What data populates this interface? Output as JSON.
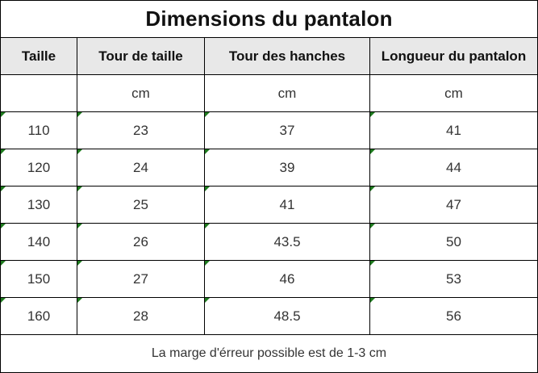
{
  "title": "Dimensions du pantalon",
  "headers": [
    "Taille",
    "Tour de taille",
    "Tour des hanches",
    "Longueur du pantalon"
  ],
  "units": [
    "",
    "cm",
    "cm",
    "cm"
  ],
  "rows": [
    {
      "taille": "110",
      "taille_waist": "23",
      "hanches": "37",
      "longueur": "41"
    },
    {
      "taille": "120",
      "taille_waist": "24",
      "hanches": "39",
      "longueur": "44"
    },
    {
      "taille": "130",
      "taille_waist": "25",
      "hanches": "41",
      "longueur": "47"
    },
    {
      "taille": "140",
      "taille_waist": "26",
      "hanches": "43.5",
      "longueur": "50"
    },
    {
      "taille": "150",
      "taille_waist": "27",
      "hanches": "46",
      "longueur": "53"
    },
    {
      "taille": "160",
      "taille_waist": "28",
      "hanches": "48.5",
      "longueur": "56"
    }
  ],
  "note": "La marge d'érreur possible est de 1-3 cm",
  "colors": {
    "header_bg": "#e8e8e8",
    "border": "#000000",
    "corner_mark": "#1e7a1e"
  }
}
